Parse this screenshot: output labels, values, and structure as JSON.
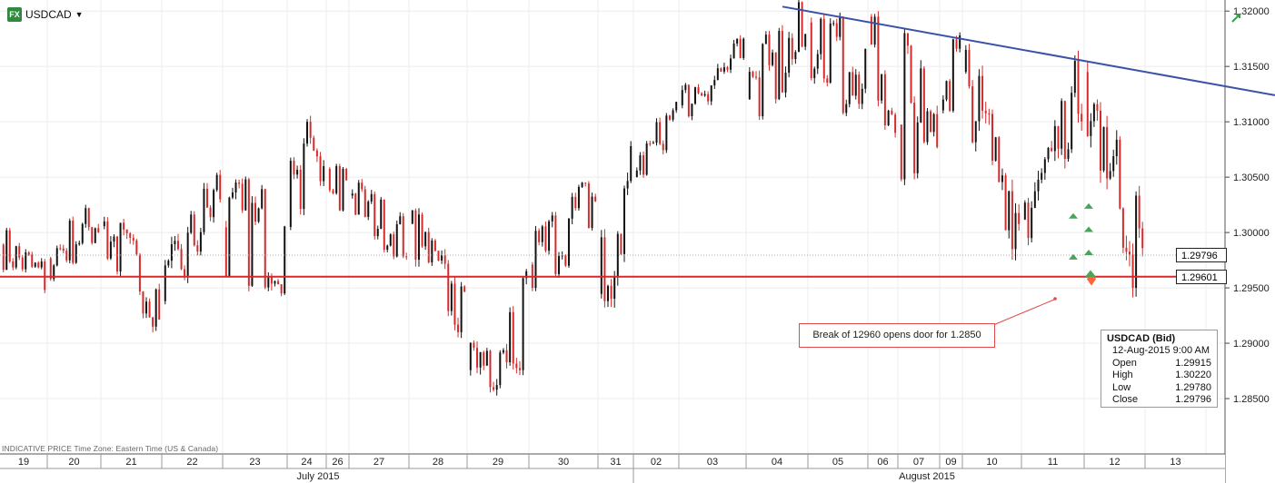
{
  "header": {
    "symbol": "USDCAD",
    "fx_badge": "FX",
    "dropdown_icon": "caret-down-icon",
    "corner_icon": "trend-up-icon"
  },
  "colors": {
    "candle_up": "#111111",
    "candle_down": "#d42a2a",
    "trendline": "#3b52a8",
    "support": "#d42a2a",
    "ref_line": "#aaaaaa",
    "accent_green": "#4aa35a"
  },
  "indicative_note": "INDICATIVE PRICE   Time Zone: Eastern Time (US & Canada)",
  "annotation": "Break of 12960 opens door for 1.2850",
  "price_boxes": {
    "current": "1.29796",
    "support": "1.29601"
  },
  "ohlc_box": {
    "title": "USDCAD (Bid)",
    "datetime": "12-Aug-2015 9:00 AM",
    "rows": [
      {
        "label": "Open",
        "value": "1.29915"
      },
      {
        "label": "High",
        "value": "1.30220"
      },
      {
        "label": "Low",
        "value": "1.29780"
      },
      {
        "label": "Close",
        "value": "1.29796"
      }
    ]
  },
  "chart_data": {
    "type": "candlestick",
    "ylim": [
      1.28,
      1.321
    ],
    "y_ticks": [
      "1.32000",
      "1.31500",
      "1.31000",
      "1.30500",
      "1.30000",
      "1.29500",
      "1.29000",
      "1.28500"
    ],
    "y_tick_values": [
      1.32,
      1.315,
      1.31,
      1.305,
      1.3,
      1.295,
      1.29,
      1.285
    ],
    "day_labels": [
      "19",
      "20",
      "21",
      "22",
      "23",
      "24",
      "26",
      "27",
      "28",
      "29",
      "30",
      "31",
      "02",
      "03",
      "04",
      "05",
      "06",
      "07",
      "09",
      "10",
      "11",
      "12",
      "13"
    ],
    "month_labels": [
      "July 2015",
      "August 2015"
    ],
    "support_level": 1.29601,
    "current_level": 1.29796,
    "trendline": {
      "start": 1.3204,
      "end": 1.3124
    },
    "daily_ohlc": [
      {
        "day": "19",
        "o": 1.2995,
        "h": 1.3002,
        "l": 1.2948,
        "c": 1.2975
      },
      {
        "day": "20",
        "o": 1.2975,
        "h": 1.3022,
        "l": 1.2958,
        "c": 1.2998
      },
      {
        "day": "21",
        "o": 1.2998,
        "h": 1.301,
        "l": 1.2915,
        "c": 1.2945
      },
      {
        "day": "22",
        "o": 1.2945,
        "h": 1.3052,
        "l": 1.2938,
        "c": 1.303
      },
      {
        "day": "23",
        "o": 1.303,
        "h": 1.3048,
        "l": 1.2945,
        "c": 1.3025
      },
      {
        "day": "24",
        "o": 1.3025,
        "h": 1.31,
        "l": 1.3005,
        "c": 1.305
      },
      {
        "day": "26",
        "o": 1.305,
        "h": 1.306,
        "l": 1.302,
        "c": 1.304
      },
      {
        "day": "27",
        "o": 1.304,
        "h": 1.3045,
        "l": 1.2978,
        "c": 1.301
      },
      {
        "day": "28",
        "o": 1.301,
        "h": 1.302,
        "l": 1.291,
        "c": 1.2925
      },
      {
        "day": "29",
        "o": 1.2925,
        "h": 1.2965,
        "l": 1.2858,
        "c": 1.2955
      },
      {
        "day": "30",
        "o": 1.2955,
        "h": 1.3045,
        "l": 1.295,
        "c": 1.2995
      },
      {
        "day": "31",
        "o": 1.2995,
        "h": 1.3078,
        "l": 1.2938,
        "c": 1.3055
      },
      {
        "day": "02",
        "o": 1.3055,
        "h": 1.3118,
        "l": 1.305,
        "c": 1.311
      },
      {
        "day": "03",
        "o": 1.311,
        "h": 1.3175,
        "l": 1.3105,
        "c": 1.315
      },
      {
        "day": "04",
        "o": 1.315,
        "h": 1.3208,
        "l": 1.3105,
        "c": 1.3185
      },
      {
        "day": "05",
        "o": 1.3185,
        "h": 1.3195,
        "l": 1.3108,
        "c": 1.316
      },
      {
        "day": "06",
        "o": 1.316,
        "h": 1.3195,
        "l": 1.309,
        "c": 1.3118
      },
      {
        "day": "07",
        "o": 1.3118,
        "h": 1.318,
        "l": 1.3048,
        "c": 1.313
      },
      {
        "day": "09",
        "o": 1.313,
        "h": 1.3178,
        "l": 1.311,
        "c": 1.3155
      },
      {
        "day": "10",
        "o": 1.3155,
        "h": 1.3165,
        "l": 1.2985,
        "c": 1.3
      },
      {
        "day": "11",
        "o": 1.3,
        "h": 1.3155,
        "l": 1.2995,
        "c": 1.314
      },
      {
        "day": "12",
        "o": 1.314,
        "h": 1.3145,
        "l": 1.295,
        "c": 1.298
      }
    ]
  }
}
